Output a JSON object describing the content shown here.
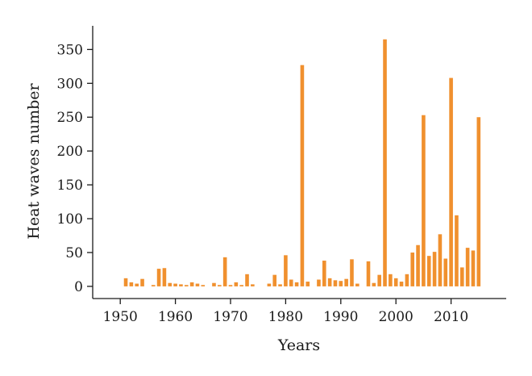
{
  "chart_data": {
    "type": "bar",
    "xlabel": "Years",
    "ylabel": "Heat waves number",
    "xlim": [
      1945,
      2020
    ],
    "ylim": [
      -18,
      385
    ],
    "x_ticks": [
      1950,
      1960,
      1970,
      1980,
      1990,
      2000,
      2010
    ],
    "y_ticks": [
      0,
      50,
      100,
      150,
      200,
      250,
      300,
      350
    ],
    "grid": false,
    "bar_color": "#f0902e",
    "x": [
      1951,
      1952,
      1953,
      1954,
      1956,
      1957,
      1958,
      1959,
      1960,
      1961,
      1962,
      1963,
      1964,
      1965,
      1967,
      1968,
      1969,
      1970,
      1971,
      1972,
      1973,
      1974,
      1977,
      1978,
      1979,
      1980,
      1981,
      1982,
      1983,
      1984,
      1986,
      1987,
      1988,
      1989,
      1990,
      1991,
      1992,
      1993,
      1995,
      1996,
      1997,
      1998,
      1999,
      2000,
      2001,
      2002,
      2003,
      2004,
      2005,
      2006,
      2007,
      2008,
      2009,
      2010,
      2011,
      2012,
      2013,
      2014,
      2015
    ],
    "values": [
      12,
      6,
      4,
      11,
      2,
      26,
      27,
      5,
      4,
      3,
      2,
      6,
      4,
      2,
      5,
      2,
      43,
      2,
      6,
      2,
      18,
      3,
      4,
      17,
      3,
      46,
      10,
      6,
      327,
      7,
      10,
      38,
      12,
      9,
      8,
      11,
      40,
      4,
      37,
      5,
      17,
      365,
      18,
      12,
      7,
      18,
      50,
      61,
      253,
      45,
      51,
      77,
      41,
      308,
      105,
      28,
      57,
      53,
      250
    ]
  }
}
